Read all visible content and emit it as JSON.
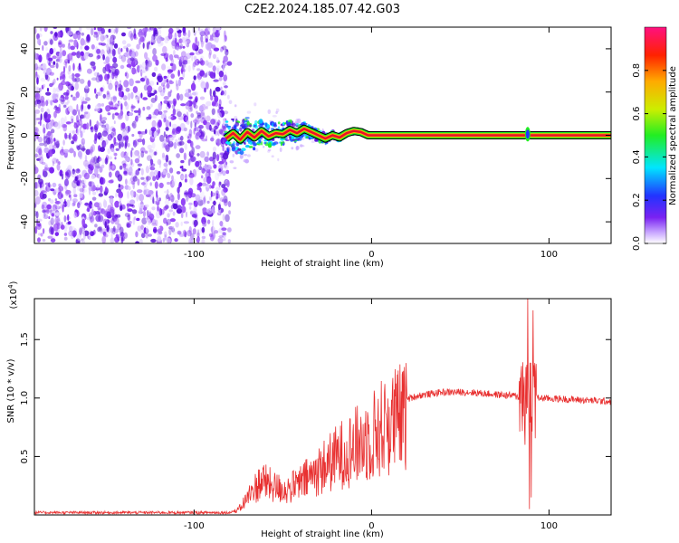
{
  "title": "C2E2.2024.185.07.42.G03",
  "chart_data": [
    {
      "type": "heatmap",
      "xlabel": "Height of straight line (km)",
      "ylabel": "Frequency (Hz)",
      "xlim": [
        -190,
        135
      ],
      "ylim": [
        -50,
        50
      ],
      "xticks": [
        -100,
        0,
        100
      ],
      "yticks": [
        -40,
        -20,
        0,
        20,
        40
      ],
      "noise_region": [
        -190,
        -80
      ],
      "ridge_start": -82,
      "ridge": [
        [
          -82,
          -1.5
        ],
        [
          -78,
          1.0
        ],
        [
          -74,
          -2.0
        ],
        [
          -70,
          1.5
        ],
        [
          -66,
          -1.0
        ],
        [
          -62,
          2.0
        ],
        [
          -58,
          -0.5
        ],
        [
          -54,
          1.0
        ],
        [
          -50,
          0.5
        ],
        [
          -46,
          2.5
        ],
        [
          -42,
          1.0
        ],
        [
          -38,
          3.0
        ],
        [
          -34,
          1.5
        ],
        [
          -30,
          0.0
        ],
        [
          -26,
          -1.5
        ],
        [
          -22,
          0.0
        ],
        [
          -18,
          -1.0
        ],
        [
          -14,
          1.0
        ],
        [
          -10,
          2.0
        ],
        [
          -6,
          1.5
        ],
        [
          -2,
          0.0
        ],
        [
          2,
          0.0
        ],
        [
          135,
          0.0
        ]
      ],
      "ridge_blip": [
        88,
        0.5
      ],
      "colorbar": {
        "label": "Normalized spectral amplitude",
        "ticks": [
          "0.0",
          "0.2",
          "0.4",
          "0.6",
          "0.8"
        ],
        "range": [
          0,
          1
        ]
      },
      "colors": {
        "ridge": "#e8102a",
        "noise": "#7a22f2"
      }
    },
    {
      "type": "line",
      "xlabel": "Height of straight line (km)",
      "ylabel": "SNR (10 * v/v)",
      "ylabel_multiplier": "(x10",
      "ylabel_exponent": "4",
      "ylabel_multiplier_close": ")",
      "xlim": [
        -190,
        135
      ],
      "ylim": [
        0,
        1.85
      ],
      "xticks": [
        -100,
        0,
        100
      ],
      "yticks": [
        "0.5",
        "1.0",
        "1.5"
      ],
      "ytick_values": [
        0.5,
        1.0,
        1.5
      ],
      "envelope": [
        [
          -190,
          0.02
        ],
        [
          -80,
          0.02
        ],
        [
          -75,
          0.05
        ],
        [
          -68,
          0.22
        ],
        [
          -62,
          0.35
        ],
        [
          -55,
          0.28
        ],
        [
          -48,
          0.25
        ],
        [
          -40,
          0.32
        ],
        [
          -32,
          0.42
        ],
        [
          -24,
          0.52
        ],
        [
          -16,
          0.62
        ],
        [
          -8,
          0.7
        ],
        [
          0,
          0.8
        ],
        [
          8,
          0.9
        ],
        [
          16,
          0.97
        ],
        [
          26,
          1.02
        ],
        [
          40,
          1.05
        ],
        [
          55,
          1.05
        ],
        [
          70,
          1.03
        ],
        [
          80,
          1.02
        ],
        [
          85,
          1.0
        ],
        [
          95,
          1.0
        ],
        [
          110,
          0.99
        ],
        [
          135,
          0.97
        ]
      ],
      "spikes": [
        [
          88,
          1.85
        ],
        [
          89,
          0.05
        ],
        [
          90,
          0.15
        ],
        [
          91,
          1.75
        ],
        [
          92,
          1.3
        ],
        [
          86.5,
          0.6
        ]
      ],
      "colors": {
        "line": "#e83030"
      }
    }
  ]
}
